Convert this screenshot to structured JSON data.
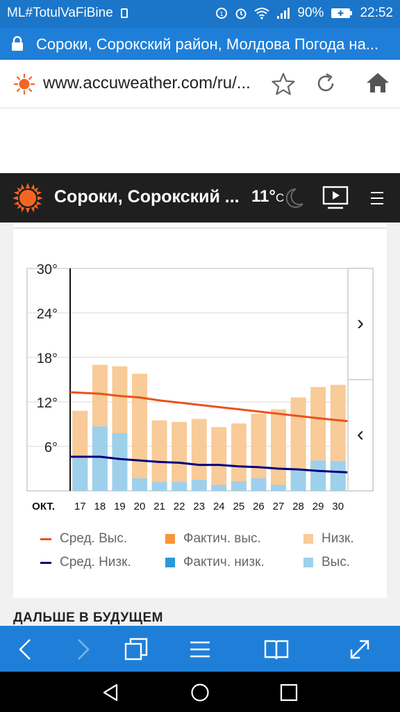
{
  "status_bar": {
    "carrier": "ML#TotulVaFiBine",
    "battery_percent": "90%",
    "time": "22:52"
  },
  "tab": {
    "title": "Сороки, Сорокский район, Молдова Погода на..."
  },
  "url_bar": {
    "url": "www.accuweather.com/ru/..."
  },
  "site_header": {
    "title": "Сороки, Сорокский ...",
    "temperature": "11°",
    "temperature_unit": "C"
  },
  "chart_data": {
    "type": "bar",
    "x_prefix": "ОКТ.",
    "categories": [
      "17",
      "18",
      "19",
      "20",
      "21",
      "22",
      "23",
      "24",
      "25",
      "26",
      "27",
      "28",
      "29",
      "30"
    ],
    "y_ticks": [
      "30°",
      "24°",
      "18°",
      "12°",
      "6°"
    ],
    "ylim": [
      0,
      30
    ],
    "series": [
      {
        "name": "Низк.",
        "color": "#f8cb98",
        "values": [
          10.8,
          17,
          16.8,
          15.8,
          9.5,
          9.3,
          9.7,
          8.6,
          9.1,
          10.4,
          11,
          12.6,
          14,
          14.3
        ]
      },
      {
        "name": "Выс.",
        "color": "#9ed0ec",
        "values": [
          4.4,
          8.7,
          7.8,
          1.7,
          1.2,
          1.2,
          1.5,
          0.8,
          1.3,
          1.7,
          0.8,
          2.8,
          4.1,
          4
        ]
      },
      {
        "name": "Сред. Выс.",
        "color": "#e9531d",
        "values": [
          13.3,
          13.1,
          12.8,
          12.6,
          12.2,
          11.9,
          11.6,
          11.3,
          11,
          10.7,
          10.4,
          10.1,
          9.8,
          9.4
        ]
      },
      {
        "name": "Сред. Низк.",
        "color": "#000080",
        "values": [
          4.6,
          4.6,
          4.3,
          4.1,
          3.9,
          3.8,
          3.5,
          3.5,
          3.3,
          3.2,
          3,
          2.9,
          2.7,
          2.5
        ]
      }
    ],
    "legend": [
      {
        "label": "Сред. Выс.",
        "kind": "line",
        "color": "#e9531d"
      },
      {
        "label": "Фактич. выс.",
        "kind": "square",
        "color": "#f7953a"
      },
      {
        "label": "Низк.",
        "kind": "square",
        "color": "#f8cb98"
      },
      {
        "label": "Сред. Низк.",
        "kind": "line",
        "color": "#000080"
      },
      {
        "label": "Фактич. низк.",
        "kind": "square",
        "color": "#2a9ad6"
      },
      {
        "label": "Выс.",
        "kind": "square",
        "color": "#9ed0ec"
      }
    ],
    "nav": {
      "next": "›",
      "prev": "‹"
    }
  },
  "section": {
    "heading": "ДАЛЬШЕ В БУДУЩЕМ"
  },
  "colors": {
    "status_bar": "#1b75c9",
    "browser_blue": "#1f7fd8",
    "header_dark": "#1f1f1f",
    "sun_orange": "#f26522"
  }
}
